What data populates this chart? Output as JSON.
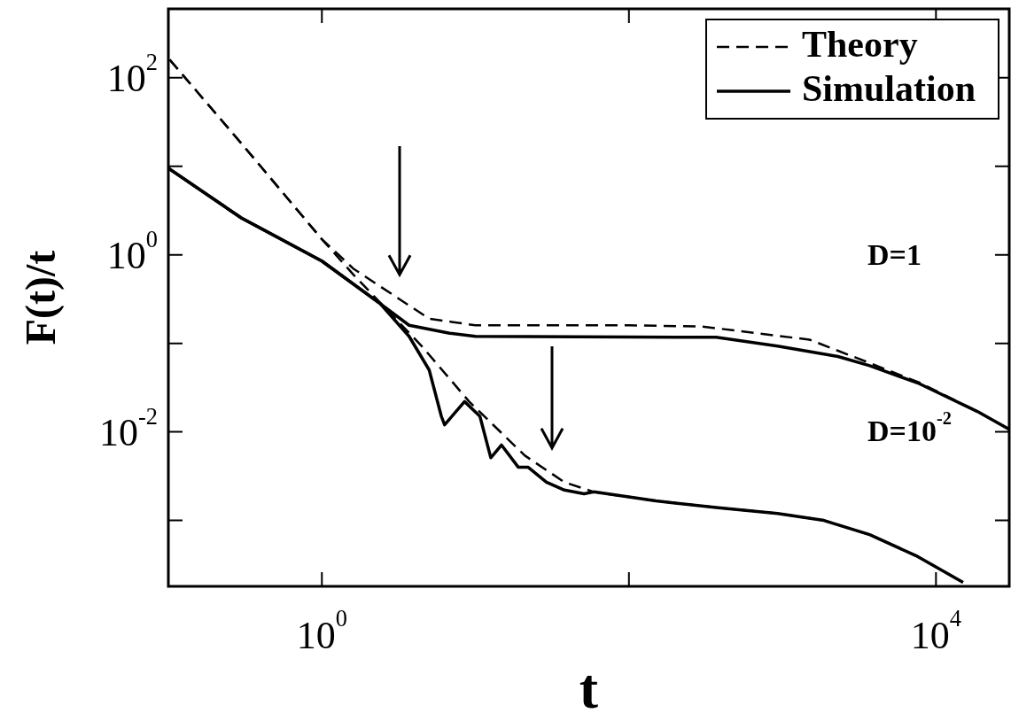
{
  "chart_data": {
    "type": "line",
    "xlabel": "t",
    "ylabel": "F(t)/t",
    "log": "xy",
    "grid": false,
    "legend": "top right",
    "marker": "none",
    "xlim": [
      0.1,
      30000
    ],
    "ylim": [
      0.00018,
      600
    ],
    "xticks": [
      {
        "value": 1,
        "label": "10$^{0}$"
      },
      {
        "value": 100,
        "label": null
      },
      {
        "value": 10000,
        "label": "10$^{4}$"
      }
    ],
    "yticks": [
      {
        "value": 0.001,
        "label": null
      },
      {
        "value": 0.01,
        "label": "10$^{-2}$"
      },
      {
        "value": 0.1,
        "label": null
      },
      {
        "value": 1,
        "label": "10$^{0}$"
      },
      {
        "value": 10,
        "label": null
      },
      {
        "value": 100,
        "label": "10$^{2}$"
      }
    ],
    "annotations": [
      "D=1",
      "D=10$^{-2}$"
    ],
    "series": [
      {
        "name": "Theory",
        "color": "#000000",
        "line_style": "dashed",
        "x": [
          0.102,
          0.3,
          1,
          1.6,
          3,
          5,
          10,
          100,
          300,
          1500,
          3700,
          7800,
          18600,
          30000
        ],
        "values": [
          160,
          18,
          1.5,
          0.7,
          0.34,
          0.19,
          0.16,
          0.16,
          0.155,
          0.11,
          0.06,
          0.036,
          0.017,
          0.0107
        ]
      },
      {
        "name": "Simulation",
        "color": "#000000",
        "line_style": "solid",
        "x": [
          0.1,
          0.3,
          1,
          2.4,
          3.7,
          6.8,
          10,
          100,
          370,
          930,
          2300,
          3700,
          7800,
          18600,
          30000
        ],
        "values": [
          9.5,
          2.6,
          0.85,
          0.28,
          0.16,
          0.13,
          0.12,
          0.118,
          0.117,
          0.093,
          0.071,
          0.056,
          0.035,
          0.017,
          0.0107
        ]
      },
      {
        "color": "#000000",
        "line_style": "dashed",
        "x": [
          0.102,
          0.3,
          1,
          1.6,
          4.5,
          9.1,
          21,
          38,
          59,
          150,
          370,
          930,
          1860,
          3700,
          7400,
          15000
        ],
        "values": [
          160,
          18,
          1.5,
          0.6,
          0.092,
          0.022,
          0.0054,
          0.0027,
          0.0021,
          0.00166,
          0.0014,
          0.0012,
          0.001,
          0.00069,
          0.0004,
          0.0002
        ]
      },
      {
        "color": "#000000",
        "line_style": "solid",
        "x": [
          0.1,
          0.3,
          1,
          2.4,
          3.7,
          5,
          6,
          6.3,
          8.5,
          10.7,
          12.6,
          14.8,
          19,
          22,
          29,
          38,
          51,
          59,
          150,
          370,
          930,
          1860,
          3700,
          7400,
          15000
        ],
        "values": [
          9.5,
          2.6,
          0.85,
          0.28,
          0.12,
          0.05,
          0.015,
          0.012,
          0.022,
          0.015,
          0.0051,
          0.0071,
          0.004,
          0.004,
          0.0027,
          0.0022,
          0.002,
          0.0021,
          0.00166,
          0.0014,
          0.0012,
          0.001,
          0.00069,
          0.0004,
          0.0002
        ]
      }
    ]
  }
}
